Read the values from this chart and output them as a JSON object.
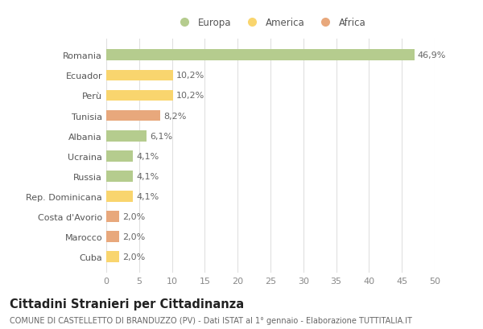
{
  "countries": [
    "Romania",
    "Ecuador",
    "Perù",
    "Tunisia",
    "Albania",
    "Ucraina",
    "Russia",
    "Rep. Dominicana",
    "Costa d'Avorio",
    "Marocco",
    "Cuba"
  ],
  "values": [
    46.9,
    10.2,
    10.2,
    8.2,
    6.1,
    4.1,
    4.1,
    4.1,
    2.0,
    2.0,
    2.0
  ],
  "labels": [
    "46,9%",
    "10,2%",
    "10,2%",
    "8,2%",
    "6,1%",
    "4,1%",
    "4,1%",
    "4,1%",
    "2,0%",
    "2,0%",
    "2,0%"
  ],
  "continents": [
    "Europa",
    "America",
    "America",
    "Africa",
    "Europa",
    "Europa",
    "Europa",
    "America",
    "Africa",
    "Africa",
    "America"
  ],
  "colors": {
    "Europa": "#b5cc8e",
    "America": "#f9d56e",
    "Africa": "#e8a87c"
  },
  "xlim": [
    0,
    50
  ],
  "xticks": [
    0,
    5,
    10,
    15,
    20,
    25,
    30,
    35,
    40,
    45,
    50
  ],
  "title": "Cittadini Stranieri per Cittadinanza",
  "subtitle": "COMUNE DI CASTELLETTO DI BRANDUZZO (PV) - Dati ISTAT al 1° gennaio - Elaborazione TUTTITALIA.IT",
  "background_color": "#ffffff",
  "grid_color": "#e0e0e0",
  "bar_height": 0.55,
  "label_fontsize": 8,
  "tick_fontsize": 8,
  "ytick_fontsize": 8,
  "title_fontsize": 10.5,
  "subtitle_fontsize": 7,
  "legend_fontsize": 8.5
}
